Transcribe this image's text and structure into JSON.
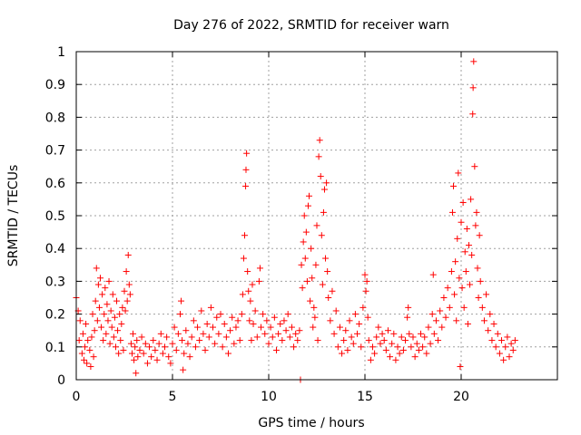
{
  "chart_data": {
    "type": "scatter",
    "title": "Day 276 of 2022, SRMTID for receiver warn",
    "xlabel": "GPS time / hours",
    "ylabel": "SRMTID / TECUs",
    "xlim": [
      0,
      25
    ],
    "ylim": [
      0,
      1
    ],
    "xticks": [
      0,
      5,
      10,
      15,
      20
    ],
    "yticks": [
      0,
      0.1,
      0.2,
      0.3,
      0.4,
      0.5,
      0.6,
      0.7,
      0.8,
      0.9,
      1
    ],
    "ytick_labels": [
      "0",
      "0.1",
      "0.2",
      "0.3",
      "0.4",
      "0.5",
      "0.6",
      "0.7",
      "0.8",
      "0.9",
      "1"
    ],
    "grid": true,
    "marker": "+",
    "color": "#ff0000",
    "series": [
      {
        "name": "SRMTID",
        "points": [
          [
            0.0,
            0.25
          ],
          [
            0.1,
            0.21
          ],
          [
            0.15,
            0.12
          ],
          [
            0.2,
            0.18
          ],
          [
            0.3,
            0.08
          ],
          [
            0.35,
            0.14
          ],
          [
            0.4,
            0.06
          ],
          [
            0.45,
            0.1
          ],
          [
            0.5,
            0.17
          ],
          [
            0.55,
            0.05
          ],
          [
            0.6,
            0.12
          ],
          [
            0.7,
            0.09
          ],
          [
            0.75,
            0.04
          ],
          [
            0.8,
            0.13
          ],
          [
            0.85,
            0.2
          ],
          [
            0.9,
            0.07
          ],
          [
            0.95,
            0.15
          ],
          [
            1.0,
            0.24
          ],
          [
            1.05,
            0.34
          ],
          [
            1.1,
            0.18
          ],
          [
            1.15,
            0.29
          ],
          [
            1.2,
            0.22
          ],
          [
            1.25,
            0.31
          ],
          [
            1.3,
            0.16
          ],
          [
            1.35,
            0.26
          ],
          [
            1.4,
            0.12
          ],
          [
            1.45,
            0.2
          ],
          [
            1.5,
            0.28
          ],
          [
            1.55,
            0.14
          ],
          [
            1.6,
            0.23
          ],
          [
            1.65,
            0.18
          ],
          [
            1.7,
            0.3
          ],
          [
            1.75,
            0.11
          ],
          [
            1.8,
            0.21
          ],
          [
            1.85,
            0.16
          ],
          [
            1.9,
            0.26
          ],
          [
            1.95,
            0.13
          ],
          [
            2.0,
            0.19
          ],
          [
            2.05,
            0.1
          ],
          [
            2.1,
            0.24
          ],
          [
            2.15,
            0.15
          ],
          [
            2.2,
            0.08
          ],
          [
            2.25,
            0.2
          ],
          [
            2.3,
            0.12
          ],
          [
            2.35,
            0.17
          ],
          [
            2.4,
            0.22
          ],
          [
            2.45,
            0.09
          ],
          [
            2.5,
            0.27
          ],
          [
            2.55,
            0.21
          ],
          [
            2.6,
            0.33
          ],
          [
            2.65,
            0.24
          ],
          [
            2.7,
            0.38
          ],
          [
            2.75,
            0.29
          ],
          [
            2.8,
            0.26
          ],
          [
            2.85,
            0.11
          ],
          [
            2.9,
            0.08
          ],
          [
            2.95,
            0.14
          ],
          [
            3.0,
            0.06
          ],
          [
            3.05,
            0.1
          ],
          [
            3.1,
            0.02
          ],
          [
            3.15,
            0.12
          ],
          [
            3.2,
            0.07
          ],
          [
            3.3,
            0.09
          ],
          [
            3.4,
            0.13
          ],
          [
            3.5,
            0.08
          ],
          [
            3.6,
            0.11
          ],
          [
            3.7,
            0.05
          ],
          [
            3.8,
            0.1
          ],
          [
            3.9,
            0.07
          ],
          [
            4.0,
            0.12
          ],
          [
            4.1,
            0.09
          ],
          [
            4.2,
            0.06
          ],
          [
            4.3,
            0.11
          ],
          [
            4.4,
            0.14
          ],
          [
            4.5,
            0.08
          ],
          [
            4.6,
            0.1
          ],
          [
            4.7,
            0.13
          ],
          [
            4.8,
            0.07
          ],
          [
            4.9,
            0.05
          ],
          [
            5.0,
            0.11
          ],
          [
            5.1,
            0.16
          ],
          [
            5.2,
            0.09
          ],
          [
            5.3,
            0.14
          ],
          [
            5.4,
            0.2
          ],
          [
            5.45,
            0.24
          ],
          [
            5.5,
            0.12
          ],
          [
            5.55,
            0.03
          ],
          [
            5.6,
            0.08
          ],
          [
            5.7,
            0.15
          ],
          [
            5.8,
            0.11
          ],
          [
            5.9,
            0.07
          ],
          [
            6.0,
            0.13
          ],
          [
            6.1,
            0.18
          ],
          [
            6.2,
            0.1
          ],
          [
            6.3,
            0.16
          ],
          [
            6.4,
            0.12
          ],
          [
            6.5,
            0.21
          ],
          [
            6.6,
            0.14
          ],
          [
            6.7,
            0.09
          ],
          [
            6.8,
            0.17
          ],
          [
            6.9,
            0.13
          ],
          [
            7.0,
            0.22
          ],
          [
            7.1,
            0.16
          ],
          [
            7.2,
            0.11
          ],
          [
            7.3,
            0.19
          ],
          [
            7.4,
            0.14
          ],
          [
            7.5,
            0.2
          ],
          [
            7.6,
            0.1
          ],
          [
            7.7,
            0.17
          ],
          [
            7.8,
            0.13
          ],
          [
            7.9,
            0.08
          ],
          [
            8.0,
            0.15
          ],
          [
            8.1,
            0.19
          ],
          [
            8.2,
            0.11
          ],
          [
            8.3,
            0.16
          ],
          [
            8.4,
            0.18
          ],
          [
            8.5,
            0.12
          ],
          [
            8.6,
            0.2
          ],
          [
            8.65,
            0.26
          ],
          [
            8.7,
            0.37
          ],
          [
            8.75,
            0.44
          ],
          [
            8.8,
            0.59
          ],
          [
            8.82,
            0.64
          ],
          [
            8.85,
            0.69
          ],
          [
            8.9,
            0.33
          ],
          [
            8.95,
            0.27
          ],
          [
            9.0,
            0.18
          ],
          [
            9.05,
            0.24
          ],
          [
            9.1,
            0.12
          ],
          [
            9.15,
            0.29
          ],
          [
            9.2,
            0.17
          ],
          [
            9.3,
            0.21
          ],
          [
            9.4,
            0.13
          ],
          [
            9.5,
            0.3
          ],
          [
            9.55,
            0.34
          ],
          [
            9.6,
            0.16
          ],
          [
            9.7,
            0.2
          ],
          [
            9.8,
            0.14
          ],
          [
            9.9,
            0.18
          ],
          [
            10.0,
            0.11
          ],
          [
            10.1,
            0.16
          ],
          [
            10.2,
            0.13
          ],
          [
            10.3,
            0.19
          ],
          [
            10.4,
            0.09
          ],
          [
            10.5,
            0.14
          ],
          [
            10.6,
            0.17
          ],
          [
            10.7,
            0.12
          ],
          [
            10.8,
            0.18
          ],
          [
            10.9,
            0.15
          ],
          [
            11.0,
            0.2
          ],
          [
            11.1,
            0.13
          ],
          [
            11.2,
            0.16
          ],
          [
            11.3,
            0.1
          ],
          [
            11.4,
            0.14
          ],
          [
            11.5,
            0.12
          ],
          [
            11.6,
            0.15
          ],
          [
            11.65,
            0.0
          ],
          [
            11.7,
            0.35
          ],
          [
            11.75,
            0.28
          ],
          [
            11.8,
            0.42
          ],
          [
            11.85,
            0.5
          ],
          [
            11.9,
            0.37
          ],
          [
            11.95,
            0.45
          ],
          [
            12.0,
            0.3
          ],
          [
            12.05,
            0.53
          ],
          [
            12.1,
            0.56
          ],
          [
            12.15,
            0.24
          ],
          [
            12.2,
            0.4
          ],
          [
            12.25,
            0.31
          ],
          [
            12.3,
            0.16
          ],
          [
            12.35,
            0.22
          ],
          [
            12.4,
            0.19
          ],
          [
            12.45,
            0.35
          ],
          [
            12.5,
            0.47
          ],
          [
            12.55,
            0.12
          ],
          [
            12.6,
            0.68
          ],
          [
            12.65,
            0.73
          ],
          [
            12.7,
            0.62
          ],
          [
            12.75,
            0.44
          ],
          [
            12.8,
            0.29
          ],
          [
            12.85,
            0.51
          ],
          [
            12.9,
            0.58
          ],
          [
            12.95,
            0.37
          ],
          [
            13.0,
            0.6
          ],
          [
            13.05,
            0.33
          ],
          [
            13.1,
            0.25
          ],
          [
            13.2,
            0.18
          ],
          [
            13.3,
            0.27
          ],
          [
            13.4,
            0.14
          ],
          [
            13.5,
            0.21
          ],
          [
            13.6,
            0.1
          ],
          [
            13.7,
            0.16
          ],
          [
            13.8,
            0.08
          ],
          [
            13.9,
            0.12
          ],
          [
            14.0,
            0.15
          ],
          [
            14.1,
            0.09
          ],
          [
            14.2,
            0.18
          ],
          [
            14.3,
            0.13
          ],
          [
            14.4,
            0.11
          ],
          [
            14.5,
            0.2
          ],
          [
            14.6,
            0.14
          ],
          [
            14.7,
            0.17
          ],
          [
            14.8,
            0.1
          ],
          [
            14.9,
            0.22
          ],
          [
            15.0,
            0.32
          ],
          [
            15.05,
            0.27
          ],
          [
            15.1,
            0.3
          ],
          [
            15.15,
            0.19
          ],
          [
            15.2,
            0.12
          ],
          [
            15.3,
            0.06
          ],
          [
            15.4,
            0.1
          ],
          [
            15.5,
            0.08
          ],
          [
            15.6,
            0.13
          ],
          [
            15.7,
            0.16
          ],
          [
            15.8,
            0.11
          ],
          [
            15.9,
            0.14
          ],
          [
            16.0,
            0.12
          ],
          [
            16.1,
            0.09
          ],
          [
            16.2,
            0.15
          ],
          [
            16.3,
            0.07
          ],
          [
            16.4,
            0.11
          ],
          [
            16.5,
            0.14
          ],
          [
            16.6,
            0.06
          ],
          [
            16.7,
            0.1
          ],
          [
            16.8,
            0.08
          ],
          [
            16.9,
            0.13
          ],
          [
            17.0,
            0.09
          ],
          [
            17.1,
            0.12
          ],
          [
            17.2,
            0.19
          ],
          [
            17.25,
            0.22
          ],
          [
            17.3,
            0.14
          ],
          [
            17.4,
            0.1
          ],
          [
            17.5,
            0.13
          ],
          [
            17.6,
            0.07
          ],
          [
            17.7,
            0.11
          ],
          [
            17.8,
            0.09
          ],
          [
            17.9,
            0.14
          ],
          [
            18.0,
            0.1
          ],
          [
            18.1,
            0.13
          ],
          [
            18.2,
            0.08
          ],
          [
            18.3,
            0.16
          ],
          [
            18.4,
            0.11
          ],
          [
            18.5,
            0.2
          ],
          [
            18.55,
            0.32
          ],
          [
            18.6,
            0.14
          ],
          [
            18.7,
            0.18
          ],
          [
            18.8,
            0.12
          ],
          [
            18.9,
            0.21
          ],
          [
            19.0,
            0.16
          ],
          [
            19.1,
            0.25
          ],
          [
            19.2,
            0.19
          ],
          [
            19.3,
            0.28
          ],
          [
            19.4,
            0.22
          ],
          [
            19.5,
            0.33
          ],
          [
            19.55,
            0.51
          ],
          [
            19.6,
            0.59
          ],
          [
            19.65,
            0.26
          ],
          [
            19.7,
            0.36
          ],
          [
            19.75,
            0.18
          ],
          [
            19.8,
            0.43
          ],
          [
            19.85,
            0.63
          ],
          [
            19.9,
            0.31
          ],
          [
            19.95,
            0.04
          ],
          [
            20.0,
            0.48
          ],
          [
            20.05,
            0.28
          ],
          [
            20.1,
            0.54
          ],
          [
            20.15,
            0.22
          ],
          [
            20.2,
            0.39
          ],
          [
            20.25,
            0.33
          ],
          [
            20.3,
            0.46
          ],
          [
            20.35,
            0.17
          ],
          [
            20.4,
            0.41
          ],
          [
            20.45,
            0.29
          ],
          [
            20.5,
            0.55
          ],
          [
            20.55,
            0.38
          ],
          [
            20.6,
            0.81
          ],
          [
            20.62,
            0.89
          ],
          [
            20.65,
            0.97
          ],
          [
            20.7,
            0.65
          ],
          [
            20.75,
            0.47
          ],
          [
            20.8,
            0.51
          ],
          [
            20.85,
            0.34
          ],
          [
            20.9,
            0.25
          ],
          [
            20.95,
            0.44
          ],
          [
            21.0,
            0.3
          ],
          [
            21.1,
            0.22
          ],
          [
            21.2,
            0.18
          ],
          [
            21.3,
            0.26
          ],
          [
            21.4,
            0.15
          ],
          [
            21.5,
            0.2
          ],
          [
            21.6,
            0.12
          ],
          [
            21.7,
            0.17
          ],
          [
            21.8,
            0.1
          ],
          [
            21.9,
            0.14
          ],
          [
            22.0,
            0.08
          ],
          [
            22.1,
            0.12
          ],
          [
            22.2,
            0.06
          ],
          [
            22.3,
            0.1
          ],
          [
            22.4,
            0.13
          ],
          [
            22.5,
            0.07
          ],
          [
            22.6,
            0.11
          ],
          [
            22.7,
            0.09
          ],
          [
            22.8,
            0.12
          ]
        ]
      }
    ]
  }
}
